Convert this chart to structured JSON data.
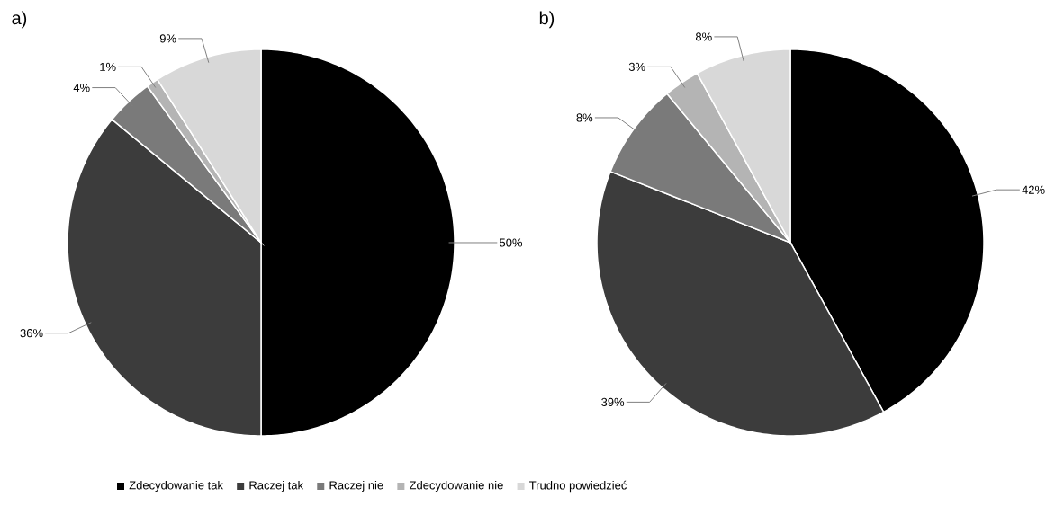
{
  "chart_data": [
    {
      "type": "pie",
      "title": "a)",
      "categories": [
        "Zdecydowanie tak",
        "Raczej tak",
        "Raczej nie",
        "Zdecydowanie nie",
        "Trudno powiedzieć"
      ],
      "values": [
        50,
        36,
        4,
        1,
        9
      ],
      "value_labels": [
        "50%",
        "36%",
        "4%",
        "1%",
        "9%"
      ],
      "colors": [
        "#000000",
        "#3c3c3c",
        "#7a7a7a",
        "#b4b4b4",
        "#d8d8d8"
      ],
      "legend": "bottom"
    },
    {
      "type": "pie",
      "title": "b)",
      "categories": [
        null,
        null,
        null,
        null,
        null
      ],
      "values": [
        42,
        39,
        8,
        3,
        8
      ],
      "value_labels": [
        "42%",
        "39%",
        "8%",
        "3%",
        "8%"
      ],
      "colors": [
        "#000000",
        "#3c3c3c",
        "#7a7a7a",
        "#b4b4b4",
        "#d8d8d8"
      ]
    }
  ]
}
